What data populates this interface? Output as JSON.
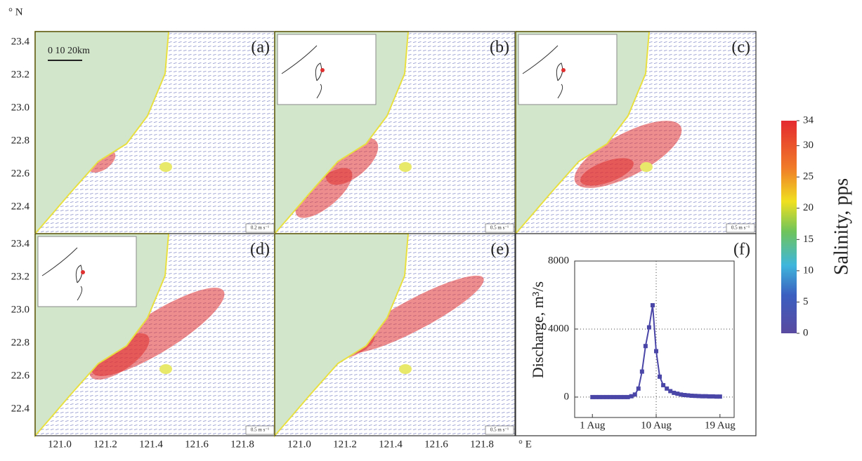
{
  "maps": {
    "north_label": "° N",
    "east_label": "° E",
    "lat_labels": [
      [
        "23.4",
        "23.2",
        "23.0",
        "22.8",
        "22.6",
        "22.4"
      ],
      [
        "23.4",
        "23.2",
        "23.0",
        "22.8",
        "22.6",
        "22.4"
      ]
    ],
    "lon_labels": [
      [
        "121.0",
        "121.2",
        "121.4",
        "121.6",
        "121.8"
      ],
      [
        "121.0",
        "121.2",
        "121.4",
        "121.6",
        "121.8"
      ]
    ],
    "scale_bar": "0  10  20km",
    "panels": [
      {
        "label": "(a)",
        "vector_scale": "0.2 m s⁻¹"
      },
      {
        "label": "(b)",
        "vector_scale": "0.5 m s⁻¹"
      },
      {
        "label": "(c)",
        "vector_scale": "0.5 m s⁻¹"
      },
      {
        "label": "(d)",
        "vector_scale": "0.5 m s⁻¹"
      },
      {
        "label": "(e)",
        "vector_scale": "0.5 m s⁻¹"
      }
    ]
  },
  "chart_data": {
    "type": "line",
    "panel_label": "(f)",
    "ylabel": "Discharge, m³/s",
    "x": [
      1,
      1.5,
      2,
      2.5,
      3,
      3.5,
      4,
      4.5,
      5,
      5.5,
      6,
      6.5,
      7,
      7.5,
      8,
      8.5,
      9,
      9.5,
      10,
      10.5,
      11,
      11.5,
      12,
      12.5,
      13,
      13.5,
      14,
      14.5,
      15,
      15.5,
      16,
      16.5,
      17,
      17.5,
      18,
      18.5,
      19
    ],
    "series": [
      {
        "color": "#4a46a8",
        "values": [
          0,
          0,
          0,
          0,
          0,
          0,
          0,
          0,
          0,
          0,
          0,
          50,
          150,
          500,
          1500,
          3000,
          4100,
          5400,
          2700,
          1200,
          700,
          500,
          350,
          250,
          200,
          150,
          120,
          100,
          80,
          70,
          60,
          50,
          50,
          40,
          40,
          30,
          30
        ]
      }
    ],
    "xlim": [
      -1.5,
      21
    ],
    "xticks": [
      {
        "value": 1,
        "label": "1 Aug"
      },
      {
        "value": 10,
        "label": "10 Aug"
      },
      {
        "value": 19,
        "label": "19 Aug"
      }
    ],
    "ylim": [
      -1200,
      8000
    ],
    "yticks": [
      0,
      4000,
      8000
    ],
    "grid": true
  },
  "colorbar": {
    "label": "Salinity, pps",
    "lim": [
      0,
      34
    ],
    "ticks": [
      0,
      5,
      10,
      15,
      20,
      25,
      30,
      34
    ]
  }
}
